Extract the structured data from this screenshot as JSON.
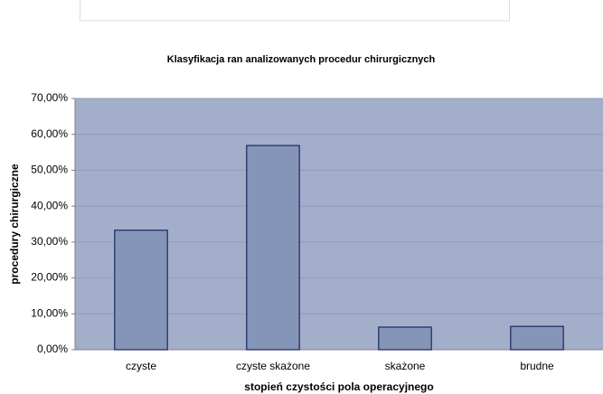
{
  "chart_data": {
    "type": "bar",
    "title": "Klasyfikacja ran analizowanych procedur chirurgicznych",
    "x_label": "stopień czystości pola operacyjnego",
    "y_label": "procedury chirurgiczne",
    "categories": [
      "czyste",
      "czyste skażone",
      "skażone",
      "brudne"
    ],
    "values": [
      33.3,
      56.9,
      6.3,
      6.5
    ],
    "color": "#8595b8",
    "ylim": [
      0,
      70
    ],
    "yticks": [
      {
        "value": 0,
        "label": "0,00%"
      },
      {
        "value": 10,
        "label": "10,00%"
      },
      {
        "value": 20,
        "label": "20,00%"
      },
      {
        "value": 30,
        "label": "30,00%"
      },
      {
        "value": 40,
        "label": "40,00%"
      },
      {
        "value": 50,
        "label": "50,00%"
      },
      {
        "value": 60,
        "label": "60,00%"
      },
      {
        "value": 70,
        "label": "70,00%"
      }
    ],
    "grid": true
  }
}
